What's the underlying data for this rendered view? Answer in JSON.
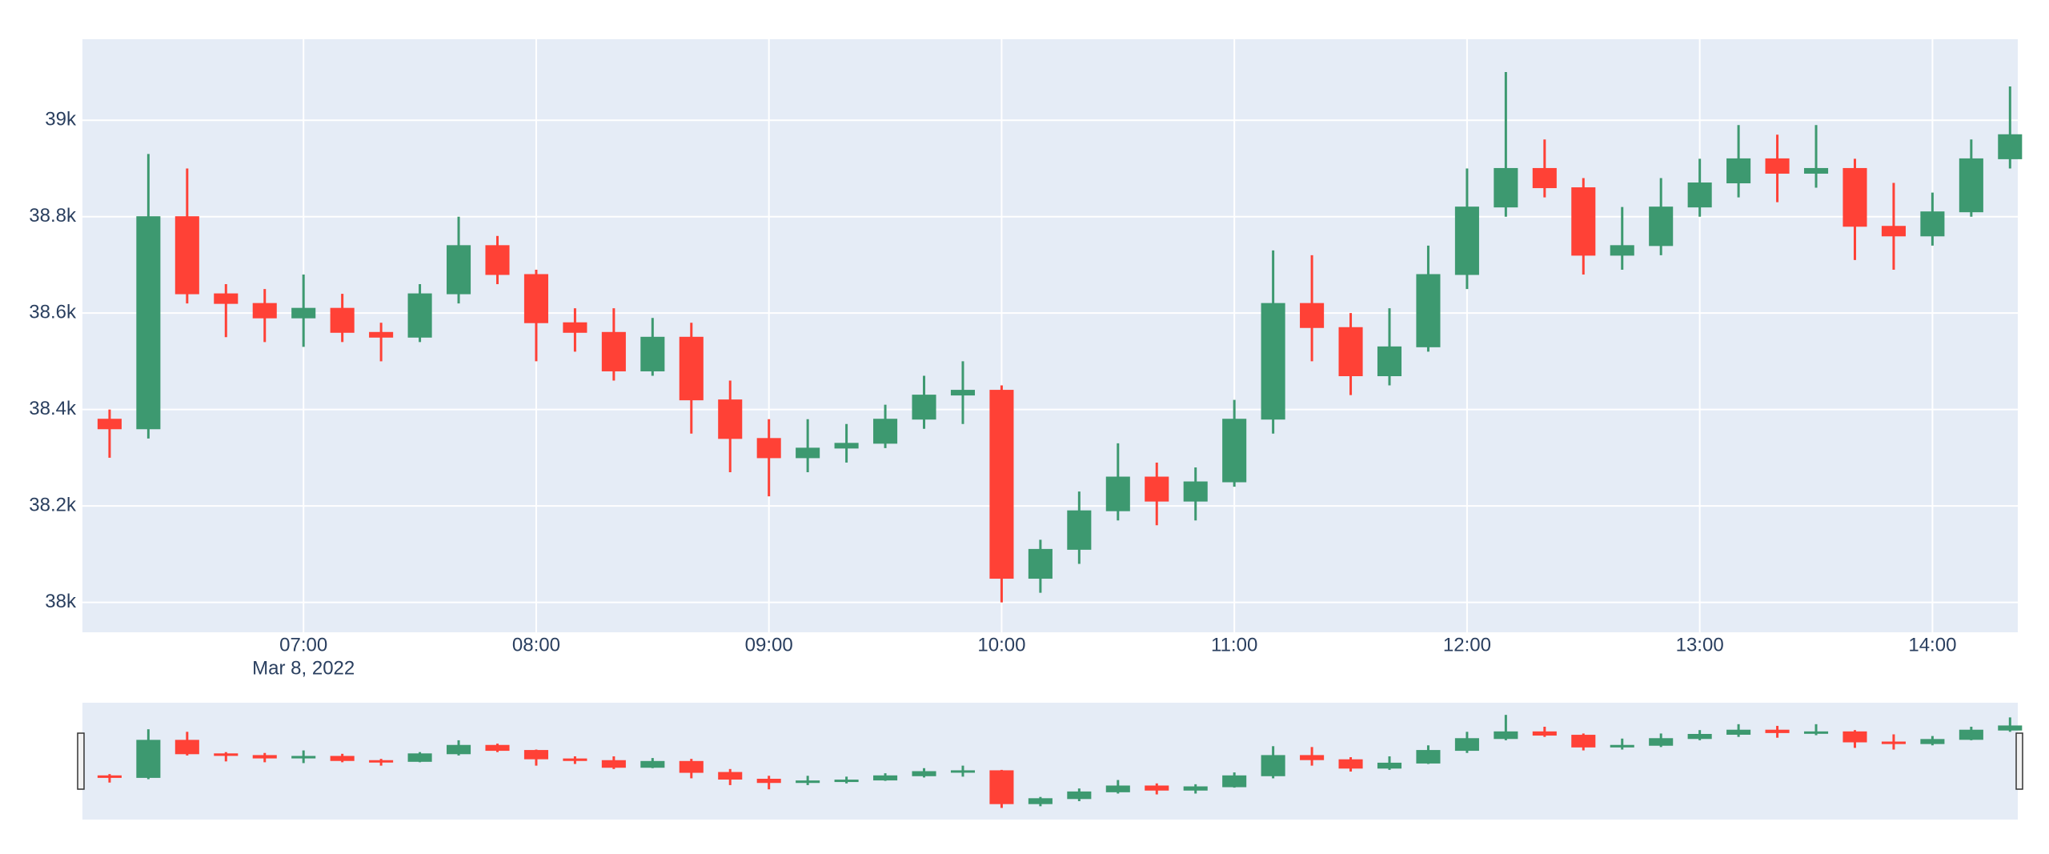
{
  "chart_data": {
    "type": "candlestick",
    "x": [
      "2022-03-08 06:10",
      "2022-03-08 06:20",
      "2022-03-08 06:30",
      "2022-03-08 06:40",
      "2022-03-08 06:50",
      "2022-03-08 07:00",
      "2022-03-08 07:10",
      "2022-03-08 07:20",
      "2022-03-08 07:30",
      "2022-03-08 07:40",
      "2022-03-08 07:50",
      "2022-03-08 08:00",
      "2022-03-08 08:10",
      "2022-03-08 08:20",
      "2022-03-08 08:30",
      "2022-03-08 08:40",
      "2022-03-08 08:50",
      "2022-03-08 09:00",
      "2022-03-08 09:10",
      "2022-03-08 09:20",
      "2022-03-08 09:30",
      "2022-03-08 09:40",
      "2022-03-08 09:50",
      "2022-03-08 10:00",
      "2022-03-08 10:10",
      "2022-03-08 10:20",
      "2022-03-08 10:30",
      "2022-03-08 10:40",
      "2022-03-08 10:50",
      "2022-03-08 11:00",
      "2022-03-08 11:10",
      "2022-03-08 11:20",
      "2022-03-08 11:30",
      "2022-03-08 11:40",
      "2022-03-08 11:50",
      "2022-03-08 12:00",
      "2022-03-08 12:10",
      "2022-03-08 12:20",
      "2022-03-08 12:30",
      "2022-03-08 12:40",
      "2022-03-08 12:50",
      "2022-03-08 13:00",
      "2022-03-08 13:10",
      "2022-03-08 13:20",
      "2022-03-08 13:30",
      "2022-03-08 13:40",
      "2022-03-08 13:50",
      "2022-03-08 14:00",
      "2022-03-08 14:10",
      "2022-03-08 14:20"
    ],
    "open": [
      38380,
      38360,
      38800,
      38640,
      38620,
      38590,
      38610,
      38560,
      38550,
      38640,
      38740,
      38680,
      38580,
      38560,
      38480,
      38550,
      38420,
      38340,
      38300,
      38320,
      38330,
      38380,
      38430,
      38440,
      38050,
      38110,
      38190,
      38260,
      38210,
      38250,
      38380,
      38620,
      38570,
      38470,
      38530,
      38680,
      38820,
      38900,
      38860,
      38720,
      38740,
      38820,
      38870,
      38920,
      38890,
      38900,
      38780,
      38760,
      38810,
      38920
    ],
    "high": [
      38400,
      38930,
      38900,
      38660,
      38650,
      38680,
      38640,
      38580,
      38660,
      38800,
      38760,
      38690,
      38610,
      38610,
      38590,
      38580,
      38460,
      38380,
      38380,
      38370,
      38410,
      38470,
      38500,
      38450,
      38130,
      38230,
      38330,
      38290,
      38280,
      38420,
      38730,
      38720,
      38600,
      38610,
      38740,
      38900,
      39100,
      38960,
      38880,
      38820,
      38880,
      38920,
      38990,
      38970,
      38990,
      38920,
      38870,
      38850,
      38960,
      39070
    ],
    "low": [
      38300,
      38340,
      38620,
      38550,
      38540,
      38530,
      38540,
      38500,
      38540,
      38620,
      38660,
      38500,
      38520,
      38460,
      38470,
      38350,
      38270,
      38220,
      38270,
      38290,
      38320,
      38360,
      38370,
      38000,
      38020,
      38080,
      38170,
      38160,
      38170,
      38240,
      38350,
      38500,
      38430,
      38450,
      38520,
      38650,
      38800,
      38840,
      38680,
      38690,
      38720,
      38800,
      38840,
      38830,
      38860,
      38710,
      38690,
      38740,
      38800,
      38900
    ],
    "close": [
      38360,
      38800,
      38640,
      38620,
      38590,
      38610,
      38560,
      38550,
      38640,
      38740,
      38680,
      38580,
      38560,
      38480,
      38550,
      38420,
      38340,
      38300,
      38320,
      38330,
      38380,
      38430,
      38440,
      38050,
      38110,
      38190,
      38260,
      38210,
      38250,
      38380,
      38620,
      38570,
      38470,
      38530,
      38680,
      38820,
      38900,
      38860,
      38720,
      38740,
      38820,
      38870,
      38920,
      38890,
      38900,
      38780,
      38760,
      38810,
      38920,
      38970
    ],
    "increasing_color": "#3d9970",
    "decreasing_color": "#ff4136",
    "xlim": [
      "2022-03-08 06:03",
      "2022-03-08 14:22"
    ],
    "xticks": [
      {
        "value": "2022-03-08 07:00",
        "label": "07:00"
      },
      {
        "value": "2022-03-08 08:00",
        "label": "08:00"
      },
      {
        "value": "2022-03-08 09:00",
        "label": "09:00"
      },
      {
        "value": "2022-03-08 10:00",
        "label": "10:00"
      },
      {
        "value": "2022-03-08 11:00",
        "label": "11:00"
      },
      {
        "value": "2022-03-08 12:00",
        "label": "12:00"
      },
      {
        "value": "2022-03-08 13:00",
        "label": "13:00"
      },
      {
        "value": "2022-03-08 14:00",
        "label": "14:00"
      }
    ],
    "x_date_label": "Mar 8, 2022",
    "ylim": [
      37938,
      39168
    ],
    "yticks": [
      {
        "value": 38000,
        "label": "38k"
      },
      {
        "value": 38200,
        "label": "38.2k"
      },
      {
        "value": 38400,
        "label": "38.4k"
      },
      {
        "value": 38600,
        "label": "38.6k"
      },
      {
        "value": 38800,
        "label": "38.8k"
      },
      {
        "value": 39000,
        "label": "39k"
      }
    ],
    "grid": true,
    "rangeslider": true
  }
}
